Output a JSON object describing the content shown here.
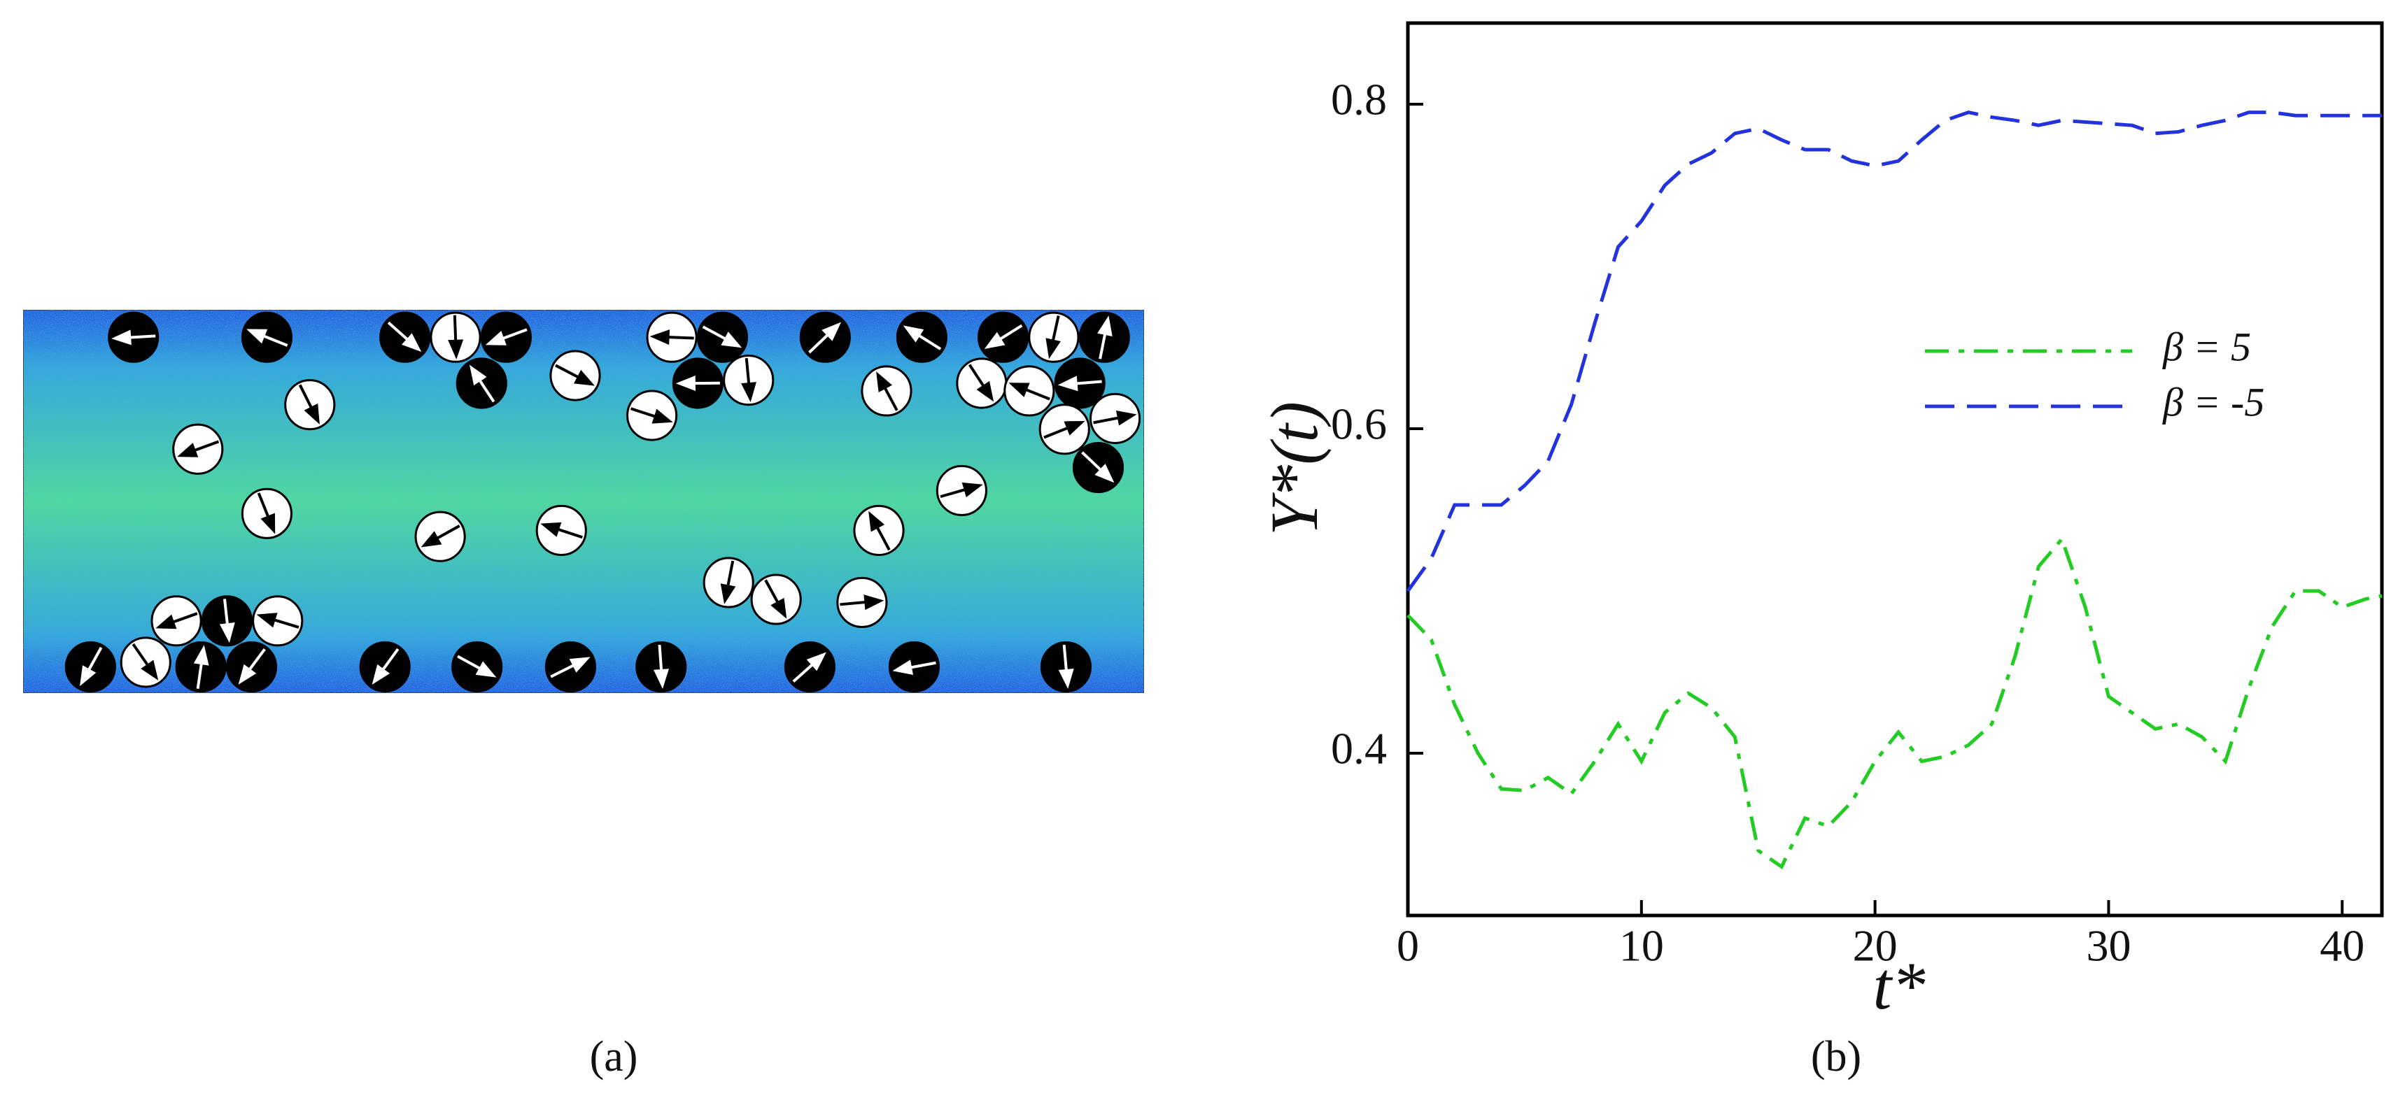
{
  "panel_a": {
    "caption": "(a)"
  },
  "chart_data": {
    "type": "line",
    "caption": "(b)",
    "xlabel": "t*",
    "ylabel": "Y*(t)",
    "x": [
      0,
      1,
      2,
      3,
      4,
      5,
      6,
      7,
      8,
      9,
      10,
      11,
      12,
      13,
      14,
      15,
      16,
      17,
      18,
      19,
      20,
      21,
      22,
      23,
      24,
      25,
      26,
      27,
      28,
      29,
      30,
      31,
      32,
      33,
      34,
      35,
      36,
      37,
      38,
      39,
      40,
      41,
      41.7
    ],
    "series": [
      {
        "name": "β = 5",
        "color": "#22cc22",
        "dash": "dashdot",
        "values": [
          0.485,
          0.47,
          0.43,
          0.4,
          0.378,
          0.377,
          0.385,
          0.375,
          0.395,
          0.418,
          0.395,
          0.425,
          0.437,
          0.428,
          0.41,
          0.34,
          0.33,
          0.36,
          0.355,
          0.37,
          0.395,
          0.413,
          0.395,
          0.398,
          0.405,
          0.418,
          0.46,
          0.515,
          0.532,
          0.49,
          0.435,
          0.425,
          0.415,
          0.418,
          0.41,
          0.395,
          0.44,
          0.478,
          0.5,
          0.5,
          0.49,
          0.495,
          0.497
        ]
      },
      {
        "name": "β = -5",
        "color": "#2233dd",
        "dash": "dashed",
        "values": [
          0.5,
          0.52,
          0.553,
          0.553,
          0.553,
          0.565,
          0.58,
          0.615,
          0.665,
          0.712,
          0.728,
          0.75,
          0.763,
          0.77,
          0.782,
          0.785,
          0.778,
          0.772,
          0.772,
          0.765,
          0.762,
          0.765,
          0.778,
          0.79,
          0.795,
          0.792,
          0.79,
          0.787,
          0.79,
          0.789,
          0.788,
          0.787,
          0.782,
          0.783,
          0.787,
          0.79,
          0.795,
          0.795,
          0.793,
          0.793,
          0.793,
          0.793,
          0.793
        ]
      }
    ],
    "xlim": [
      0,
      41.7
    ],
    "ylim": [
      0.3,
      0.85
    ],
    "xticks": [
      0,
      10,
      20,
      30,
      40
    ],
    "yticks": [
      0.4,
      0.6,
      0.8
    ]
  }
}
